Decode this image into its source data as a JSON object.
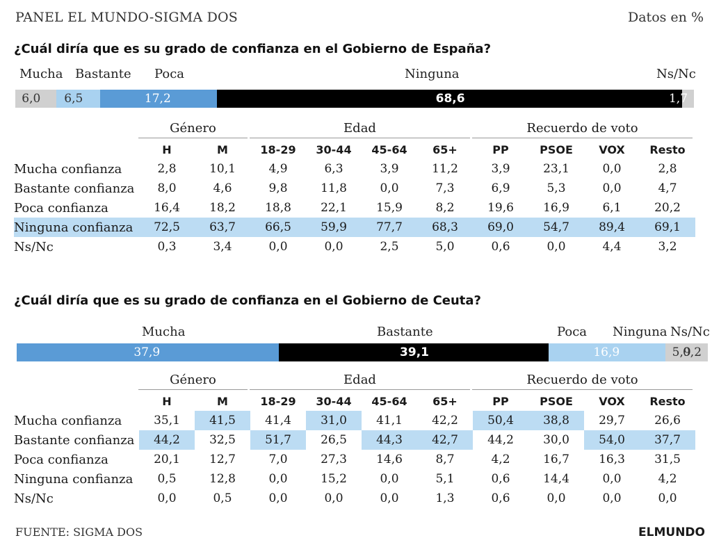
{
  "header": {
    "title": "PANEL EL MUNDO-SIGMA DOS",
    "units": "Datos en %"
  },
  "footer": {
    "source": "FUENTE: SIGMA DOS",
    "brand": "ELMUNDO"
  },
  "table_headers": {
    "groups": [
      "Género",
      "Edad",
      "Recuerdo de voto"
    ],
    "columns": [
      "H",
      "M",
      "18-29",
      "30-44",
      "45-64",
      "65+",
      "PP",
      "PSOE",
      "VOX",
      "Resto"
    ]
  },
  "colors": {
    "dark_blue": "#5a9bd6",
    "light_blue": "#a9d2f0",
    "black": "#000000",
    "gray": "#d0d0d0",
    "highlight": "#bcdcf3"
  },
  "chart_data": [
    {
      "type": "bar",
      "title": "¿Cuál diría que es su grado de confianza en el Gobierno de España?",
      "categories": [
        "Mucha",
        "Bastante",
        "Poca",
        "Ninguna",
        "Ns/Nc"
      ],
      "value_labels": [
        "6,0",
        "6,5",
        "17,2",
        "68,6",
        "1,7"
      ],
      "values": [
        6.0,
        6.5,
        17.2,
        68.6,
        1.7
      ],
      "table": {
        "rows": [
          {
            "label": "Mucha confianza",
            "values": [
              "2,8",
              "10,1",
              "4,9",
              "6,3",
              "3,9",
              "11,2",
              "3,9",
              "23,1",
              "0,0",
              "2,8"
            ]
          },
          {
            "label": "Bastante confianza",
            "values": [
              "8,0",
              "4,6",
              "9,8",
              "11,8",
              "0,0",
              "7,3",
              "6,9",
              "5,3",
              "0,0",
              "4,7"
            ]
          },
          {
            "label": "Poca confianza",
            "values": [
              "16,4",
              "18,2",
              "18,8",
              "22,1",
              "15,9",
              "8,2",
              "19,6",
              "16,9",
              "6,1",
              "20,2"
            ]
          },
          {
            "label": "Ninguna confianza",
            "values": [
              "72,5",
              "63,7",
              "66,5",
              "59,9",
              "77,7",
              "68,3",
              "69,0",
              "54,7",
              "89,4",
              "69,1"
            ]
          },
          {
            "label": "Ns/Nc",
            "values": [
              "0,3",
              "3,4",
              "0,0",
              "0,0",
              "2,5",
              "5,0",
              "0,6",
              "0,0",
              "4,4",
              "3,2"
            ]
          }
        ]
      }
    },
    {
      "type": "bar",
      "title": "¿Cuál diría que es su grado de confianza en el Gobierno de Ceuta?",
      "categories": [
        "Mucha",
        "Bastante",
        "Poca",
        "Ninguna",
        "Ns/Nc"
      ],
      "value_labels": [
        "37,9",
        "39,1",
        "16,9",
        "5,9",
        "0,2"
      ],
      "values": [
        37.9,
        39.1,
        16.9,
        5.9,
        0.2
      ],
      "table": {
        "rows": [
          {
            "label": "Mucha confianza",
            "values": [
              "35,1",
              "41,5",
              "41,4",
              "31,0",
              "41,1",
              "42,2",
              "50,4",
              "38,8",
              "29,7",
              "26,6"
            ]
          },
          {
            "label": "Bastante confianza",
            "values": [
              "44,2",
              "32,5",
              "51,7",
              "26,5",
              "44,3",
              "42,7",
              "44,2",
              "30,0",
              "54,0",
              "37,7"
            ]
          },
          {
            "label": "Poca confianza",
            "values": [
              "20,1",
              "12,7",
              "7,0",
              "27,3",
              "14,6",
              "8,7",
              "4,2",
              "16,7",
              "16,3",
              "31,5"
            ]
          },
          {
            "label": "Ninguna confianza",
            "values": [
              "0,5",
              "12,8",
              "0,0",
              "15,2",
              "0,0",
              "5,1",
              "0,6",
              "14,4",
              "0,0",
              "4,2"
            ]
          },
          {
            "label": "Ns/Nc",
            "values": [
              "0,0",
              "0,5",
              "0,0",
              "0,0",
              "0,0",
              "1,3",
              "0,6",
              "0,0",
              "0,0",
              "0,0"
            ]
          }
        ]
      }
    }
  ]
}
